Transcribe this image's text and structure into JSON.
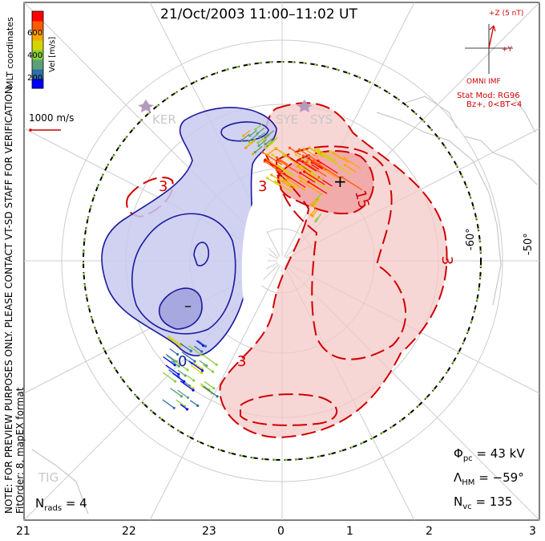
{
  "title": "21/Oct/2003 11:00–11:02 UT",
  "side_note_line1": "NOTE: FOR PREVIEW PURPOSES ONLY. PLEASE CONTACT VT-SD STAFF FOR VERIFICATION.",
  "side_note_line2": "FitOrder: 8, mapEX format",
  "coordinate_label": "MLT coordinates",
  "colorbar": {
    "axis_label": "Vel [m/s]",
    "ticks": [
      "600",
      "400",
      "200"
    ],
    "colors": [
      "#0000ff",
      "#2f6ea8",
      "#5ca07a",
      "#8ccf3c",
      "#d4d400",
      "#ffa500",
      "#ff5a00",
      "#ff0000"
    ]
  },
  "reference_vector": {
    "label": "1000 m/s",
    "color": "#d10000"
  },
  "imf": {
    "z_label": "+Z (5 nT)",
    "y_label": "+Y",
    "caption": "OMNI IMF",
    "clock_angle_deg": 12
  },
  "stat_model": {
    "line1": "Stat Mod: RG96",
    "line2": "Bz+, 0<BT<4"
  },
  "stations": [
    "KER",
    "SYE",
    "SYS",
    "TIG"
  ],
  "latitude_labels": [
    "-60°",
    "-50°"
  ],
  "mlt_ticks": [
    "21",
    "22",
    "23",
    "0",
    "1",
    "2",
    "3"
  ],
  "contour_labels": [
    "3",
    "3",
    "15",
    "3",
    "3",
    "0"
  ],
  "extrema_markers": {
    "max": "+",
    "min": "–"
  },
  "stats": {
    "phi_pc": "Φ",
    "phi_pc_sub": "pc",
    "phi_pc_value": "= 43 kV",
    "lambda_hm": "Λ",
    "lambda_hm_sub": "HM",
    "lambda_hm_value": "= −59°",
    "n_vc": "N",
    "n_vc_sub": "vc",
    "n_vc_value": "= 135",
    "n_rads": "N",
    "n_rads_sub": "rads",
    "n_rads_value": "= 4"
  },
  "colors": {
    "negative_cell": "#c9c9ee",
    "negative_contour": "#1a1aa0",
    "positive_cell": "#f4c8c8",
    "positive_contour": "#d10000",
    "boundary_dash": "#8ccf3c",
    "grid": "#cccccc"
  }
}
